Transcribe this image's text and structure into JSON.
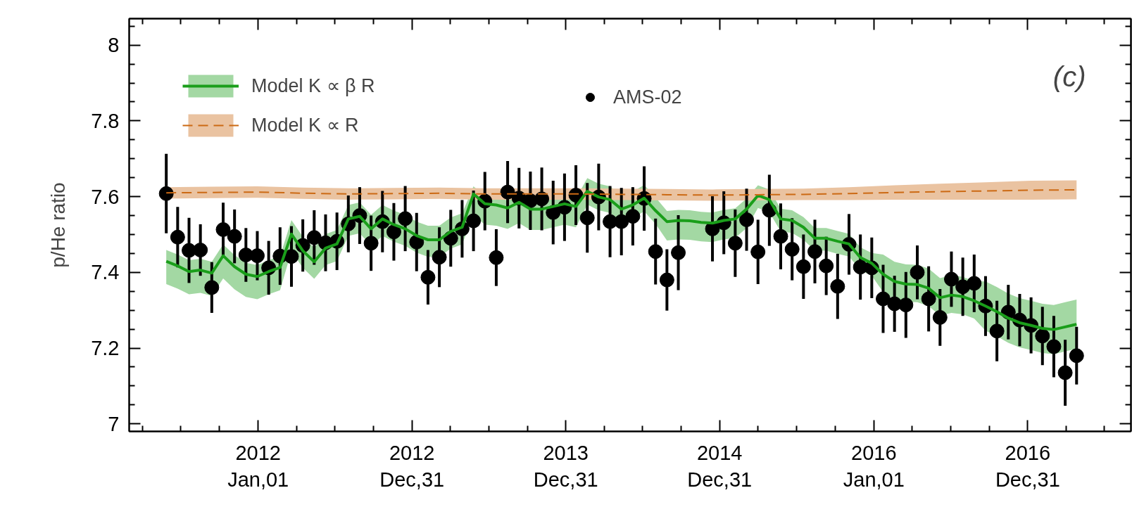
{
  "chart_data": {
    "type": "line",
    "ylabel": "p/He ratio",
    "annotations": [
      "(c)"
    ],
    "grid": false,
    "legend": "top left",
    "xlim": [
      "2011-03-01",
      "2017-09-02"
    ],
    "xticks": [
      {
        "value": "2011-04-01",
        "label": null
      },
      {
        "value": "2011-07-01",
        "label": null
      },
      {
        "value": "2011-10-01",
        "label": null
      },
      {
        "value": "2012-01-01",
        "label": "2012\nJan,01"
      },
      {
        "value": "2012-04-01",
        "label": null
      },
      {
        "value": "2012-07-01",
        "label": null
      },
      {
        "value": "2012-10-01",
        "label": null
      },
      {
        "value": "2012-12-31",
        "label": "2012\nDec,31"
      },
      {
        "value": "2013-04-01",
        "label": null
      },
      {
        "value": "2013-07-01",
        "label": null
      },
      {
        "value": "2013-10-01",
        "label": null
      },
      {
        "value": "2013-12-31",
        "label": "2013\nDec,31"
      },
      {
        "value": "2014-04-01",
        "label": null
      },
      {
        "value": "2014-07-01",
        "label": null
      },
      {
        "value": "2014-10-01",
        "label": null
      },
      {
        "value": "2014-12-31",
        "label": "2014\nDec,31"
      },
      {
        "value": "2015-04-01",
        "label": null
      },
      {
        "value": "2015-07-01",
        "label": null
      },
      {
        "value": "2015-10-01",
        "label": null
      },
      {
        "value": "2016-01-01",
        "label": "2016\nJan,01"
      },
      {
        "value": "2016-04-01",
        "label": null
      },
      {
        "value": "2016-07-01",
        "label": null
      },
      {
        "value": "2016-10-01",
        "label": null
      },
      {
        "value": "2016-12-31",
        "label": "2016\nDec,31"
      },
      {
        "value": "2017-04-01",
        "label": null
      },
      {
        "value": "2017-07-01",
        "label": null
      }
    ],
    "ylim": [
      6.98,
      8.07
    ],
    "yticks": [
      7,
      {
        "value": 7.05,
        "label": null
      },
      {
        "value": 7.1,
        "label": null
      },
      {
        "value": 7.15,
        "label": null
      },
      7.2,
      {
        "value": 7.25,
        "label": null
      },
      {
        "value": 7.3,
        "label": null
      },
      {
        "value": 7.35,
        "label": null
      },
      7.4,
      {
        "value": 7.45,
        "label": null
      },
      {
        "value": 7.5,
        "label": null
      },
      {
        "value": 7.55,
        "label": null
      },
      7.6,
      {
        "value": 7.65,
        "label": null
      },
      {
        "value": 7.7,
        "label": null
      },
      {
        "value": 7.75,
        "label": null
      },
      7.8,
      {
        "value": 7.85,
        "label": null
      },
      {
        "value": 7.9,
        "label": null
      },
      {
        "value": 7.95,
        "label": null
      },
      8,
      {
        "value": 8.05,
        "label": null
      }
    ],
    "series": [
      {
        "name": "Model K ∝ β R",
        "color": "#1a9e1a",
        "line_style": "solid",
        "x": [
          "2011-05-28",
          "2011-06-24",
          "2011-07-21",
          "2011-08-17",
          "2011-09-13",
          "2011-10-10",
          "2011-11-06",
          "2011-12-03",
          "2011-12-30",
          "2012-01-26",
          "2012-02-22",
          "2012-03-20",
          "2012-04-16",
          "2012-05-13",
          "2012-06-09",
          "2012-07-06",
          "2012-08-02",
          "2012-08-29",
          "2012-09-25",
          "2012-10-22",
          "2012-11-18",
          "2012-12-15",
          "2013-01-11",
          "2013-02-07",
          "2013-03-06",
          "2013-04-02",
          "2013-04-29",
          "2013-05-26",
          "2013-06-22",
          "2013-07-19",
          "2013-08-15",
          "2013-09-11",
          "2013-10-08",
          "2013-11-04",
          "2013-12-01",
          "2013-12-28",
          "2014-01-24",
          "2014-02-20",
          "2014-03-19",
          "2014-04-15",
          "2014-05-12",
          "2014-06-08",
          "2014-07-05",
          "2014-08-01",
          "2014-08-28",
          "2014-09-24",
          "2014-10-21",
          "2014-11-17",
          "2014-12-14",
          "2015-01-10",
          "2015-02-06",
          "2015-03-05",
          "2015-04-01",
          "2015-04-28",
          "2015-05-25",
          "2015-06-21",
          "2015-07-18",
          "2015-08-14",
          "2015-09-10",
          "2015-10-07",
          "2015-11-03",
          "2015-11-30",
          "2015-12-27",
          "2016-01-23",
          "2016-02-19",
          "2016-03-17",
          "2016-04-13",
          "2016-05-10",
          "2016-06-06",
          "2016-07-03",
          "2016-07-30",
          "2016-08-26",
          "2016-09-22",
          "2016-10-19",
          "2016-11-15",
          "2016-12-12",
          "2017-01-08",
          "2017-02-04",
          "2017-03-03",
          "2017-03-30",
          "2017-04-26"
        ],
        "values": [
          7.429,
          7.417,
          7.402,
          7.406,
          7.398,
          7.444,
          7.415,
          7.395,
          7.389,
          7.402,
          7.413,
          7.501,
          7.457,
          7.428,
          7.464,
          7.475,
          7.541,
          7.548,
          7.515,
          7.541,
          7.526,
          7.515,
          7.497,
          7.486,
          7.486,
          7.508,
          7.519,
          7.607,
          7.581,
          7.578,
          7.57,
          7.585,
          7.567,
          7.567,
          7.574,
          7.581,
          7.574,
          7.614,
          7.599,
          7.592,
          7.567,
          7.578,
          7.596,
          7.563,
          7.534,
          7.537,
          7.536,
          7.532,
          7.53,
          7.537,
          7.541,
          7.567,
          7.603,
          7.592,
          7.541,
          7.537,
          7.519,
          7.49,
          7.49,
          7.482,
          7.475,
          7.439,
          7.424,
          7.395,
          7.376,
          7.369,
          7.368,
          7.358,
          7.333,
          7.34,
          7.336,
          7.325,
          7.311,
          7.296,
          7.279,
          7.267,
          7.26,
          7.252,
          7.249,
          7.256,
          7.263
        ],
        "upper": [
          7.459,
          7.447,
          7.432,
          7.436,
          7.428,
          7.474,
          7.445,
          7.425,
          7.419,
          7.432,
          7.443,
          7.538,
          7.494,
          7.465,
          7.501,
          7.512,
          7.578,
          7.585,
          7.552,
          7.578,
          7.563,
          7.552,
          7.534,
          7.523,
          7.523,
          7.545,
          7.556,
          7.627,
          7.601,
          7.598,
          7.59,
          7.605,
          7.587,
          7.587,
          7.594,
          7.601,
          7.594,
          7.649,
          7.634,
          7.627,
          7.602,
          7.613,
          7.631,
          7.598,
          7.562,
          7.565,
          7.564,
          7.56,
          7.558,
          7.565,
          7.569,
          7.595,
          7.63,
          7.619,
          7.568,
          7.564,
          7.546,
          7.517,
          7.517,
          7.509,
          7.502,
          7.466,
          7.451,
          7.447,
          7.428,
          7.421,
          7.42,
          7.41,
          7.385,
          7.392,
          7.388,
          7.377,
          7.376,
          7.361,
          7.344,
          7.332,
          7.325,
          7.317,
          7.314,
          7.321,
          7.328
        ],
        "lower": [
          7.369,
          7.357,
          7.342,
          7.346,
          7.338,
          7.384,
          7.355,
          7.335,
          7.329,
          7.342,
          7.353,
          7.456,
          7.412,
          7.383,
          7.419,
          7.43,
          7.496,
          7.503,
          7.47,
          7.496,
          7.481,
          7.47,
          7.452,
          7.441,
          7.441,
          7.463,
          7.474,
          7.552,
          7.526,
          7.523,
          7.515,
          7.53,
          7.512,
          7.512,
          7.519,
          7.526,
          7.519,
          7.579,
          7.564,
          7.557,
          7.532,
          7.543,
          7.561,
          7.528,
          7.484,
          7.487,
          7.486,
          7.482,
          7.48,
          7.487,
          7.491,
          7.517,
          7.57,
          7.559,
          7.508,
          7.504,
          7.486,
          7.457,
          7.457,
          7.449,
          7.442,
          7.406,
          7.391,
          7.348,
          7.329,
          7.322,
          7.321,
          7.311,
          7.286,
          7.293,
          7.289,
          7.278,
          7.246,
          7.231,
          7.214,
          7.202,
          7.195,
          7.187,
          7.184,
          7.191,
          7.198
        ]
      },
      {
        "name": "Model K ∝ R",
        "color": "#cc6a14",
        "line_style": "dashed",
        "x": [
          "2011-05-28",
          "2011-09-13",
          "2011-12-30",
          "2012-04-16",
          "2012-08-02",
          "2012-11-18",
          "2013-03-06",
          "2013-06-22",
          "2013-10-08",
          "2014-01-24",
          "2014-05-12",
          "2014-08-28",
          "2014-12-14",
          "2015-04-01",
          "2015-07-18",
          "2015-11-03",
          "2016-02-19",
          "2016-06-06",
          "2016-09-22",
          "2017-01-08",
          "2017-04-26"
        ],
        "values": [
          7.61,
          7.611,
          7.612,
          7.609,
          7.607,
          7.608,
          7.609,
          7.607,
          7.607,
          7.607,
          7.606,
          7.605,
          7.604,
          7.605,
          7.606,
          7.608,
          7.611,
          7.613,
          7.615,
          7.617,
          7.618
        ],
        "upper": [
          7.625,
          7.626,
          7.627,
          7.624,
          7.622,
          7.623,
          7.624,
          7.622,
          7.622,
          7.622,
          7.621,
          7.62,
          7.619,
          7.62,
          7.621,
          7.625,
          7.63,
          7.634,
          7.638,
          7.642,
          7.643
        ],
        "lower": [
          7.595,
          7.596,
          7.597,
          7.594,
          7.592,
          7.593,
          7.594,
          7.592,
          7.592,
          7.592,
          7.591,
          7.59,
          7.589,
          7.59,
          7.591,
          7.591,
          7.592,
          7.592,
          7.592,
          7.592,
          7.593
        ]
      },
      {
        "name": "AMS-02",
        "type": "scatter",
        "color": "#000000",
        "marker": "circle",
        "x": [
          "2011-05-28",
          "2011-06-24",
          "2011-07-21",
          "2011-08-17",
          "2011-09-13",
          "2011-10-10",
          "2011-11-06",
          "2011-12-03",
          "2011-12-30",
          "2012-01-26",
          "2012-02-22",
          "2012-03-20",
          "2012-04-16",
          "2012-05-13",
          "2012-06-09",
          "2012-07-06",
          "2012-08-02",
          "2012-08-29",
          "2012-09-25",
          "2012-10-22",
          "2012-11-18",
          "2012-12-15",
          "2013-01-11",
          "2013-02-07",
          "2013-03-06",
          "2013-04-02",
          "2013-04-29",
          "2013-05-26",
          "2013-06-22",
          "2013-07-19",
          "2013-08-15",
          "2013-09-11",
          "2013-10-08",
          "2013-11-04",
          "2013-12-01",
          "2013-12-28",
          "2014-01-24",
          "2014-02-20",
          "2014-03-19",
          "2014-04-15",
          "2014-05-12",
          "2014-06-08",
          "2014-07-05",
          "2014-08-01",
          "2014-08-28",
          "2014-09-24",
          "2014-12-14",
          "2015-01-10",
          "2015-02-06",
          "2015-03-05",
          "2015-04-01",
          "2015-04-28",
          "2015-05-25",
          "2015-06-21",
          "2015-07-18",
          "2015-08-14",
          "2015-09-10",
          "2015-10-07",
          "2015-11-03",
          "2015-11-30",
          "2015-12-27",
          "2016-01-23",
          "2016-02-19",
          "2016-03-17",
          "2016-04-13",
          "2016-05-10",
          "2016-06-06",
          "2016-07-03",
          "2016-07-30",
          "2016-08-26",
          "2016-09-22",
          "2016-10-19",
          "2016-11-15",
          "2016-12-12",
          "2017-01-08",
          "2017-02-04",
          "2017-03-03",
          "2017-03-30",
          "2017-04-26"
        ],
        "values": [
          7.608,
          7.493,
          7.458,
          7.459,
          7.36,
          7.513,
          7.495,
          7.446,
          7.444,
          7.412,
          7.443,
          7.442,
          7.471,
          7.492,
          7.478,
          7.482,
          7.528,
          7.55,
          7.477,
          7.534,
          7.507,
          7.542,
          7.48,
          7.387,
          7.44,
          7.49,
          7.515,
          7.536,
          7.588,
          7.439,
          7.612,
          7.596,
          7.589,
          7.594,
          7.558,
          7.572,
          7.604,
          7.544,
          7.599,
          7.534,
          7.534,
          7.548,
          7.595,
          7.455,
          7.38,
          7.452,
          7.515,
          7.531,
          7.477,
          7.539,
          7.454,
          7.564,
          7.495,
          7.461,
          7.415,
          7.455,
          7.417,
          7.363,
          7.474,
          7.414,
          7.412,
          7.33,
          7.317,
          7.314,
          7.4,
          7.33,
          7.281,
          7.382,
          7.362,
          7.371,
          7.311,
          7.245,
          7.295,
          7.274,
          7.26,
          7.232,
          7.204,
          7.135,
          7.18
        ],
        "errors": [
          0.105,
          0.08,
          0.086,
          0.068,
          0.067,
          0.071,
          0.071,
          0.071,
          0.065,
          0.071,
          0.076,
          0.08,
          0.069,
          0.072,
          0.075,
          0.076,
          0.075,
          0.075,
          0.073,
          0.081,
          0.076,
          0.086,
          0.077,
          0.072,
          0.079,
          0.075,
          0.076,
          0.08,
          0.077,
          0.075,
          0.082,
          0.08,
          0.077,
          0.083,
          0.084,
          0.089,
          0.079,
          0.092,
          0.088,
          0.094,
          0.089,
          0.077,
          0.085,
          0.087,
          0.081,
          0.099,
          0.086,
          0.083,
          0.089,
          0.082,
          0.085,
          0.094,
          0.087,
          0.082,
          0.085,
          0.084,
          0.077,
          0.086,
          0.08,
          0.086,
          0.08,
          0.09,
          0.074,
          0.087,
          0.071,
          0.086,
          0.075,
          0.073,
          0.077,
          0.076,
          0.079,
          0.08,
          0.072,
          0.069,
          0.074,
          0.077,
          0.081,
          0.087,
          0.076
        ]
      }
    ]
  }
}
